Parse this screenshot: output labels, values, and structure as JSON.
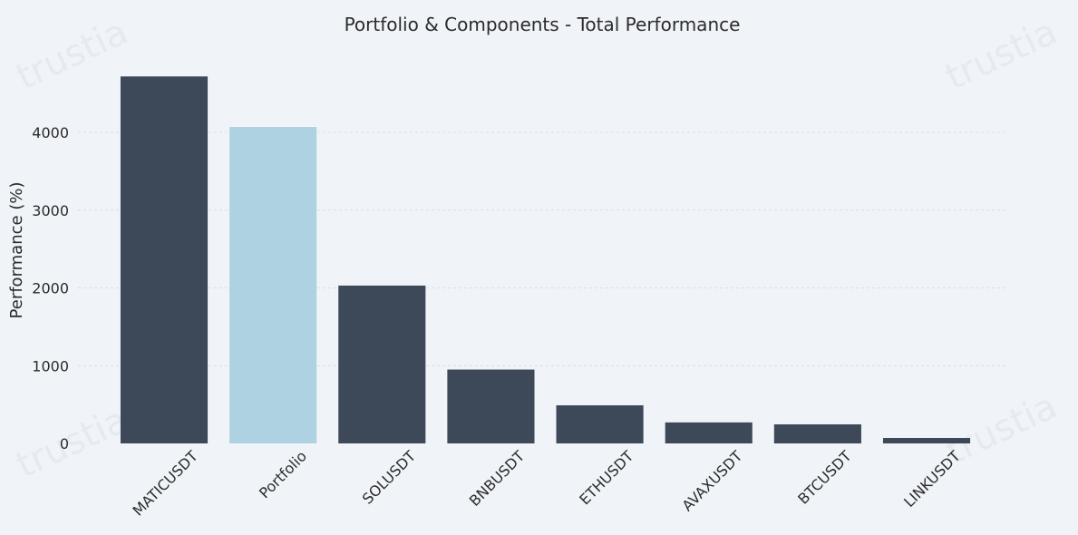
{
  "chart_data": {
    "type": "bar",
    "title": "Portfolio & Components - Total Performance",
    "xlabel": "",
    "ylabel": "Performance (%)",
    "categories": [
      "MATICUSDT",
      "Portfolio",
      "SOLUSDT",
      "BNBUSDT",
      "ETHUSDT",
      "AVAXUSDT",
      "BTCUSDT",
      "LINKUSDT"
    ],
    "values": [
      4720,
      4070,
      2030,
      950,
      490,
      270,
      245,
      70
    ],
    "ylim": [
      0,
      4980
    ],
    "yticks": [
      0,
      1000,
      2000,
      3000,
      4000
    ],
    "grid": true,
    "colors": {
      "default_bar": "#3d4858",
      "highlight_bar": "#afd2e3",
      "background": "#f0f4f8"
    },
    "highlight_category": "Portfolio"
  },
  "watermark": {
    "text": "trustia"
  }
}
